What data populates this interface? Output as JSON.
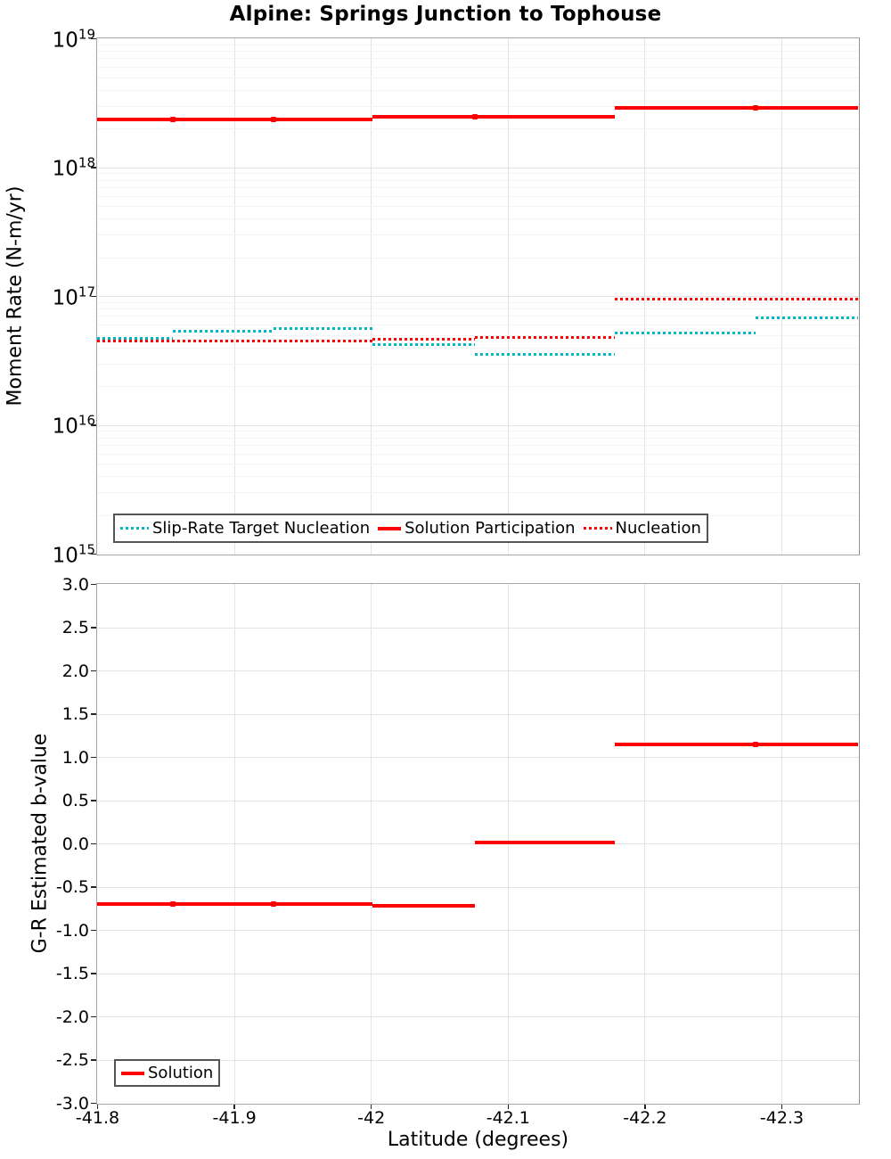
{
  "title": "Alpine: Springs Junction to Tophouse",
  "colors": {
    "red": "#ff0000",
    "teal": "#00b8bf",
    "grid_major": "#e4e4e4",
    "grid_minor": "#f4f4f4",
    "spine": "#a6a6a6",
    "legend_border": "#545454",
    "tick": "#262626"
  },
  "chart_data": [
    {
      "type": "line",
      "subtype": "step-segments",
      "ylabel": "Moment Rate (N-m/yr)",
      "yscale": "log",
      "ylim": [
        1000000000000000.0,
        1e+19
      ],
      "ytick_exponents": [
        19,
        18,
        17,
        16,
        15
      ],
      "xlim": [
        -41.8,
        -42.356
      ],
      "xticks": [
        -41.8,
        -41.9,
        -42.0,
        -42.1,
        -42.2,
        -42.3
      ],
      "xtick_labels": [
        "-41.8",
        "-41.9",
        "-42",
        "-42.1",
        "-42.2",
        "-42.3"
      ],
      "grid": true,
      "legend_position": "lower-left",
      "legend": [
        {
          "label": "Slip-Rate Target Nucleation",
          "color": "#00b8bf",
          "style": "dotted"
        },
        {
          "label": "Solution Participation",
          "color": "#ff0000",
          "style": "solid"
        },
        {
          "label": "Nucleation",
          "color": "#ff0000",
          "style": "dotted"
        }
      ],
      "series": [
        {
          "name": "Slip-Rate Target Nucleation",
          "color": "#00b8bf",
          "style": "dotted",
          "segments": [
            {
              "x0": -41.8,
              "x1": -41.855,
              "y": 4.7e+16
            },
            {
              "x0": -41.855,
              "x1": -41.929,
              "y": 5.3e+16
            },
            {
              "x0": -41.929,
              "x1": -42.001,
              "y": 5.6e+16
            },
            {
              "x0": -42.001,
              "x1": -42.076,
              "y": 4.2e+16
            },
            {
              "x0": -42.076,
              "x1": -42.178,
              "y": 3.5e+16
            },
            {
              "x0": -42.178,
              "x1": -42.281,
              "y": 5.2e+16
            },
            {
              "x0": -42.281,
              "x1": -42.356,
              "y": 6.8e+16
            }
          ]
        },
        {
          "name": "Solution Participation",
          "color": "#ff0000",
          "style": "solid",
          "segments": [
            {
              "x0": -41.8,
              "x1": -41.855,
              "y": 2.35e+18
            },
            {
              "x0": -41.855,
              "x1": -41.929,
              "y": 2.35e+18
            },
            {
              "x0": -41.929,
              "x1": -42.001,
              "y": 2.35e+18
            },
            {
              "x0": -42.001,
              "x1": -42.076,
              "y": 2.48e+18
            },
            {
              "x0": -42.076,
              "x1": -42.178,
              "y": 2.48e+18
            },
            {
              "x0": -42.178,
              "x1": -42.281,
              "y": 2.9e+18
            },
            {
              "x0": -42.281,
              "x1": -42.356,
              "y": 2.9e+18
            }
          ]
        },
        {
          "name": "Nucleation",
          "color": "#ff0000",
          "style": "dotted",
          "segments": [
            {
              "x0": -41.8,
              "x1": -42.001,
              "y": 4.5e+16
            },
            {
              "x0": -42.001,
              "x1": -42.076,
              "y": 4.6e+16
            },
            {
              "x0": -42.076,
              "x1": -42.178,
              "y": 4.8e+16
            },
            {
              "x0": -42.178,
              "x1": -42.356,
              "y": 9.5e+16
            }
          ]
        }
      ]
    },
    {
      "type": "line",
      "subtype": "step-segments",
      "ylabel": "G-R Estimated b-value",
      "xlabel": "Latitude (degrees)",
      "yscale": "linear",
      "ylim": [
        -3.0,
        3.0
      ],
      "yticks": [
        3.0,
        2.5,
        2.0,
        1.5,
        1.0,
        0.5,
        0.0,
        -0.5,
        -1.0,
        -1.5,
        -2.0,
        -2.5,
        -3.0
      ],
      "ytick_labels": [
        "3.0",
        "2.5",
        "2.0",
        "1.5",
        "1.0",
        "0.5",
        "0.0",
        "-0.5",
        "-1.0",
        "-1.5",
        "-2.0",
        "-2.5",
        "-3.0"
      ],
      "xlim": [
        -41.8,
        -42.356
      ],
      "xticks": [
        -41.8,
        -41.9,
        -42.0,
        -42.1,
        -42.2,
        -42.3
      ],
      "xtick_labels": [
        "-41.8",
        "-41.9",
        "-42",
        "-42.1",
        "-42.2",
        "-42.3"
      ],
      "grid": true,
      "legend_position": "lower-left",
      "legend": [
        {
          "label": "Solution",
          "color": "#ff0000",
          "style": "solid"
        }
      ],
      "series": [
        {
          "name": "Solution",
          "color": "#ff0000",
          "style": "solid",
          "segments": [
            {
              "x0": -41.8,
              "x1": -41.855,
              "y": -0.7
            },
            {
              "x0": -41.855,
              "x1": -41.929,
              "y": -0.7
            },
            {
              "x0": -41.929,
              "x1": -42.001,
              "y": -0.7
            },
            {
              "x0": -42.001,
              "x1": -42.076,
              "y": -0.72
            },
            {
              "x0": -42.076,
              "x1": -42.178,
              "y": 0.01
            },
            {
              "x0": -42.178,
              "x1": -42.281,
              "y": 1.15
            },
            {
              "x0": -42.281,
              "x1": -42.356,
              "y": 1.15
            }
          ]
        }
      ]
    }
  ]
}
